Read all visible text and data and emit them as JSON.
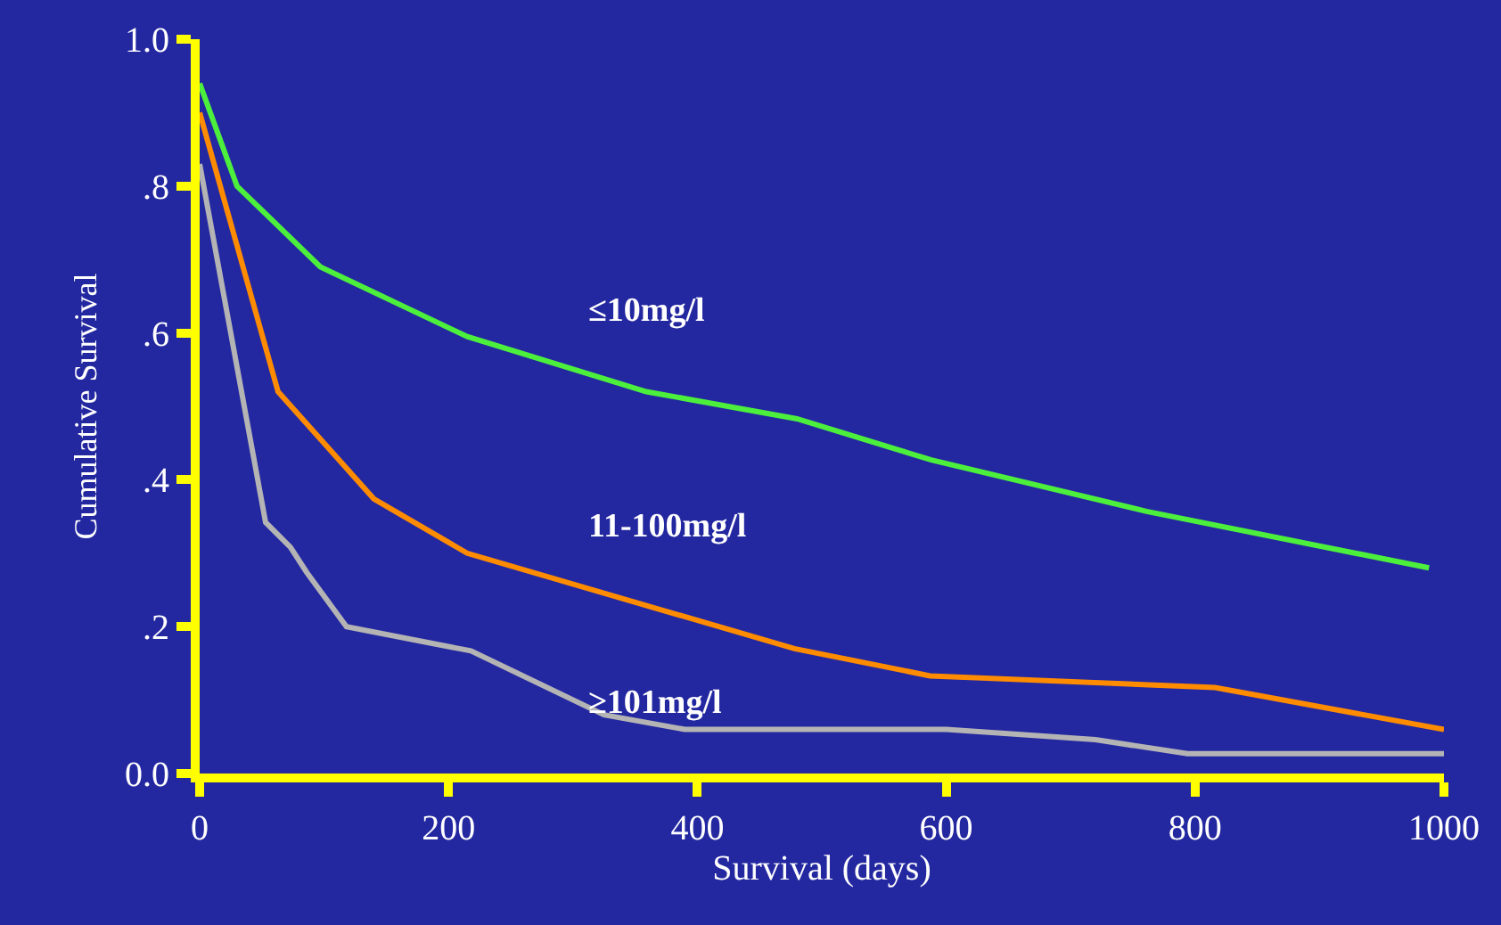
{
  "chart_data": {
    "type": "line",
    "xlabel": "Survival (days)",
    "ylabel": "Cumulative Survival",
    "xlim": [
      0,
      1000
    ],
    "xticks": [
      0,
      200,
      400,
      600,
      800,
      1000
    ],
    "ylim": [
      0,
      1.0
    ],
    "yticks": [
      {
        "value": 0,
        "label": "0.0"
      },
      {
        "value": 0.2,
        "label": ".2"
      },
      {
        "value": 0.4,
        "label": ".4"
      },
      {
        "value": 0.6,
        "label": ".6"
      },
      {
        "value": 0.8,
        "label": ".8"
      },
      {
        "value": 1.0,
        "label": "1.0"
      }
    ],
    "grid": false,
    "legend": false,
    "marker": "none",
    "line_style": "solid",
    "series": [
      {
        "name": "≤10mg/l",
        "color": "#4cf03c",
        "x": [
          0,
          30,
          97,
          215,
          359,
          480,
          588,
          761,
          988
        ],
        "values": [
          0.94,
          0.8,
          0.69,
          0.595,
          0.52,
          0.483,
          0.427,
          0.357,
          0.28
        ]
      },
      {
        "name": "11-100mg/l",
        "color": "#ff8c00",
        "x": [
          0,
          63,
          140,
          215,
          478,
          587,
          816,
          1000
        ],
        "values": [
          0.9,
          0.52,
          0.374,
          0.3,
          0.17,
          0.133,
          0.117,
          0.06
        ]
      },
      {
        "name": "≥101mg/l",
        "color": "#b4b4b4",
        "x": [
          0,
          53,
          73,
          86,
          118,
          218,
          325,
          390,
          600,
          720,
          794,
          1000
        ],
        "values": [
          0.83,
          0.342,
          0.308,
          0.274,
          0.2,
          0.167,
          0.08,
          0.06,
          0.06,
          0.046,
          0.027,
          0.027
        ]
      }
    ]
  }
}
